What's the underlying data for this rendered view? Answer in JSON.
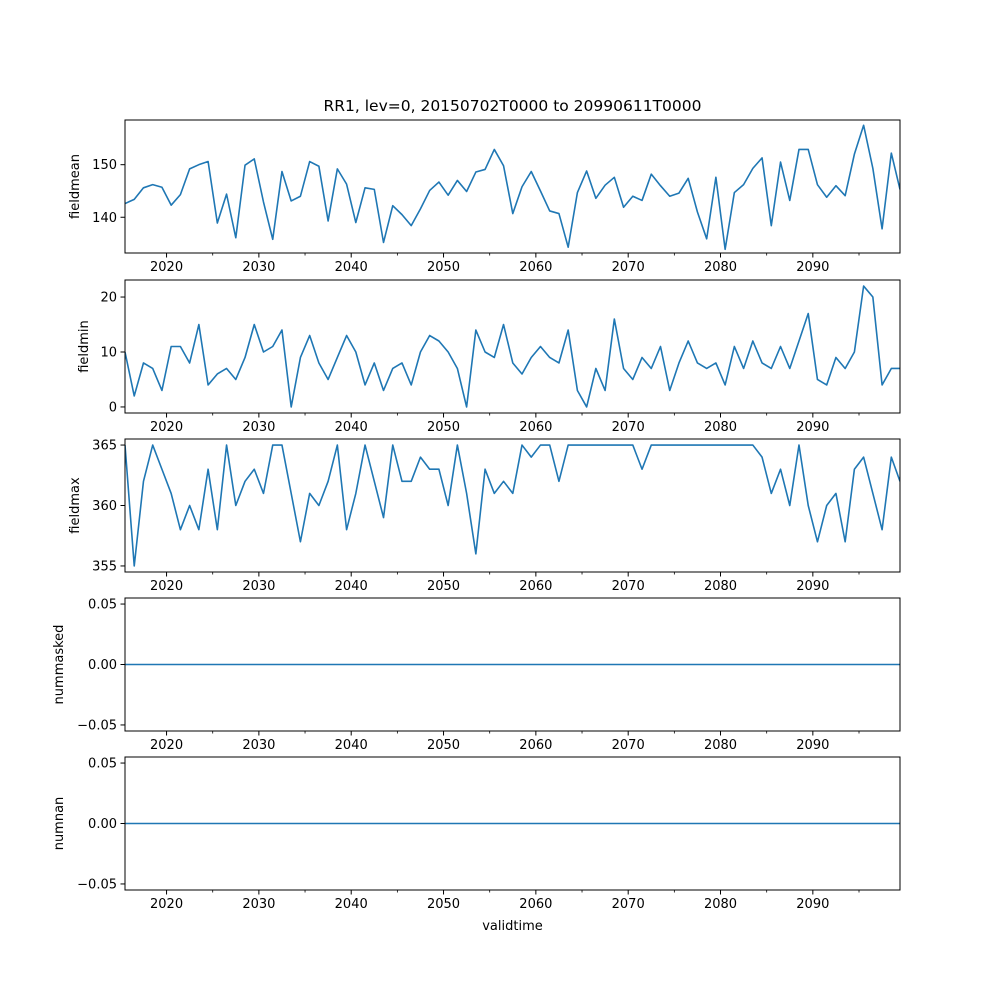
{
  "title": "RR1, lev=0, 20150702T0000 to 20990611T0000",
  "xlabel": "validtime",
  "colors": {
    "line": "#1f77b4",
    "axis": "#000000",
    "background": "#ffffff"
  },
  "chart_data": [
    {
      "type": "line",
      "ylabel": "fieldmean",
      "xlim": [
        2015.5,
        2099.44
      ],
      "ylim": [
        133.2,
        158.5
      ],
      "x_ticks": [
        "2020",
        "2030",
        "2040",
        "2050",
        "2060",
        "2070",
        "2080",
        "2090"
      ],
      "y_ticks": [
        "140",
        "150"
      ],
      "x": [
        2015.5,
        2016.5,
        2017.5,
        2018.5,
        2019.5,
        2020.5,
        2021.5,
        2022.5,
        2023.5,
        2024.5,
        2025.5,
        2026.5,
        2027.5,
        2028.5,
        2029.5,
        2030.5,
        2031.5,
        2032.5,
        2033.5,
        2034.5,
        2035.5,
        2036.5,
        2037.5,
        2038.5,
        2039.5,
        2040.5,
        2041.5,
        2042.5,
        2043.5,
        2044.5,
        2045.5,
        2046.5,
        2047.5,
        2048.5,
        2049.5,
        2050.5,
        2051.5,
        2052.5,
        2053.5,
        2054.5,
        2055.5,
        2056.5,
        2057.5,
        2058.5,
        2059.5,
        2060.5,
        2061.5,
        2062.5,
        2063.5,
        2064.5,
        2065.5,
        2066.5,
        2067.5,
        2068.5,
        2069.5,
        2070.5,
        2071.5,
        2072.5,
        2073.5,
        2074.5,
        2075.5,
        2076.5,
        2077.5,
        2078.5,
        2079.5,
        2080.5,
        2081.5,
        2082.5,
        2083.5,
        2084.5,
        2085.5,
        2086.5,
        2087.5,
        2088.5,
        2089.5,
        2090.5,
        2091.5,
        2092.5,
        2093.5,
        2094.5,
        2095.5,
        2096.5,
        2097.5,
        2098.5,
        2099.44
      ],
      "values": [
        142.6,
        143.4,
        145.6,
        146.2,
        145.7,
        142.3,
        144.3,
        149.2,
        150.0,
        150.6,
        138.9,
        144.4,
        136.1,
        149.9,
        151.1,
        142.9,
        135.8,
        148.7,
        143.1,
        144.0,
        150.6,
        149.7,
        139.3,
        149.2,
        146.3,
        139.0,
        145.6,
        145.3,
        135.2,
        142.2,
        140.5,
        138.4,
        141.6,
        145.1,
        146.7,
        144.2,
        147.0,
        144.9,
        148.6,
        149.1,
        152.9,
        149.8,
        140.7,
        145.8,
        148.7,
        145.0,
        141.2,
        140.7,
        134.3,
        144.7,
        148.8,
        143.6,
        146.1,
        147.6,
        141.9,
        144.0,
        143.2,
        148.2,
        146.0,
        144.0,
        144.6,
        147.4,
        141.0,
        135.9,
        147.6,
        133.9,
        144.7,
        146.2,
        149.3,
        151.3,
        138.4,
        150.5,
        143.2,
        152.9,
        152.9,
        146.2,
        143.8,
        146.0,
        144.1,
        152.0,
        157.5,
        149.3,
        137.8,
        152.2,
        145.3
      ]
    },
    {
      "type": "line",
      "ylabel": "fieldmin",
      "xlim": [
        2015.5,
        2099.44
      ],
      "ylim": [
        -1.1,
        23.1
      ],
      "x_ticks": [
        "2020",
        "2030",
        "2040",
        "2050",
        "2060",
        "2070",
        "2080",
        "2090"
      ],
      "y_ticks": [
        "0",
        "10",
        "20"
      ],
      "x": [
        2015.5,
        2016.5,
        2017.5,
        2018.5,
        2019.5,
        2020.5,
        2021.5,
        2022.5,
        2023.5,
        2024.5,
        2025.5,
        2026.5,
        2027.5,
        2028.5,
        2029.5,
        2030.5,
        2031.5,
        2032.5,
        2033.5,
        2034.5,
        2035.5,
        2036.5,
        2037.5,
        2038.5,
        2039.5,
        2040.5,
        2041.5,
        2042.5,
        2043.5,
        2044.5,
        2045.5,
        2046.5,
        2047.5,
        2048.5,
        2049.5,
        2050.5,
        2051.5,
        2052.5,
        2053.5,
        2054.5,
        2055.5,
        2056.5,
        2057.5,
        2058.5,
        2059.5,
        2060.5,
        2061.5,
        2062.5,
        2063.5,
        2064.5,
        2065.5,
        2066.5,
        2067.5,
        2068.5,
        2069.5,
        2070.5,
        2071.5,
        2072.5,
        2073.5,
        2074.5,
        2075.5,
        2076.5,
        2077.5,
        2078.5,
        2079.5,
        2080.5,
        2081.5,
        2082.5,
        2083.5,
        2084.5,
        2085.5,
        2086.5,
        2087.5,
        2088.5,
        2089.5,
        2090.5,
        2091.5,
        2092.5,
        2093.5,
        2094.5,
        2095.5,
        2096.5,
        2097.5,
        2098.5,
        2099.44
      ],
      "values": [
        10,
        2,
        8,
        7,
        3,
        11,
        11,
        8,
        15,
        4,
        6,
        7,
        5,
        9,
        15,
        10,
        11,
        14,
        0,
        9,
        13,
        8,
        5,
        9,
        13,
        10,
        4,
        8,
        3,
        7,
        8,
        4,
        10,
        13,
        12,
        10,
        7,
        0,
        14,
        10,
        9,
        15,
        8,
        6,
        9,
        11,
        9,
        8,
        14,
        3,
        0,
        7,
        3,
        16,
        7,
        5,
        9,
        7,
        11,
        3,
        8,
        12,
        8,
        7,
        8,
        4,
        11,
        7,
        12,
        8,
        7,
        11,
        7,
        12,
        17,
        5,
        4,
        9,
        7,
        10,
        22,
        20,
        4,
        7,
        7
      ]
    },
    {
      "type": "line",
      "ylabel": "fieldmax",
      "xlim": [
        2015.5,
        2099.44
      ],
      "ylim": [
        354.5,
        365.5
      ],
      "x_ticks": [
        "2020",
        "2030",
        "2040",
        "2050",
        "2060",
        "2070",
        "2080",
        "2090"
      ],
      "y_ticks": [
        "355",
        "360",
        "365"
      ],
      "x": [
        2015.5,
        2016.5,
        2017.5,
        2018.5,
        2019.5,
        2020.5,
        2021.5,
        2022.5,
        2023.5,
        2024.5,
        2025.5,
        2026.5,
        2027.5,
        2028.5,
        2029.5,
        2030.5,
        2031.5,
        2032.5,
        2033.5,
        2034.5,
        2035.5,
        2036.5,
        2037.5,
        2038.5,
        2039.5,
        2040.5,
        2041.5,
        2042.5,
        2043.5,
        2044.5,
        2045.5,
        2046.5,
        2047.5,
        2048.5,
        2049.5,
        2050.5,
        2051.5,
        2052.5,
        2053.5,
        2054.5,
        2055.5,
        2056.5,
        2057.5,
        2058.5,
        2059.5,
        2060.5,
        2061.5,
        2062.5,
        2063.5,
        2064.5,
        2065.5,
        2066.5,
        2067.5,
        2068.5,
        2069.5,
        2070.5,
        2071.5,
        2072.5,
        2073.5,
        2074.5,
        2075.5,
        2076.5,
        2077.5,
        2078.5,
        2079.5,
        2080.5,
        2081.5,
        2082.5,
        2083.5,
        2084.5,
        2085.5,
        2086.5,
        2087.5,
        2088.5,
        2089.5,
        2090.5,
        2091.5,
        2092.5,
        2093.5,
        2094.5,
        2095.5,
        2096.5,
        2097.5,
        2098.5,
        2099.44
      ],
      "values": [
        365,
        355,
        362,
        365,
        363,
        361,
        358,
        360,
        358,
        363,
        358,
        365,
        360,
        362,
        363,
        361,
        365,
        365,
        361,
        357,
        361,
        360,
        362,
        365,
        358,
        361,
        365,
        362,
        359,
        365,
        362,
        362,
        364,
        363,
        363,
        360,
        365,
        361,
        356,
        363,
        361,
        362,
        361,
        365,
        364,
        365,
        365,
        362,
        365,
        365,
        365,
        365,
        365,
        365,
        365,
        365,
        363,
        365,
        365,
        365,
        365,
        365,
        365,
        365,
        365,
        365,
        365,
        365,
        365,
        364,
        361,
        363,
        360,
        365,
        360,
        357,
        360,
        361,
        357,
        363,
        364,
        361,
        358,
        364,
        362
      ]
    },
    {
      "type": "line",
      "ylabel": "nummasked",
      "xlim": [
        2015.5,
        2099.44
      ],
      "ylim": [
        -0.055,
        0.055
      ],
      "x_ticks": [
        "2020",
        "2030",
        "2040",
        "2050",
        "2060",
        "2070",
        "2080",
        "2090"
      ],
      "y_ticks": [
        "−0.05",
        "0.00",
        "0.05"
      ],
      "x": [
        2015.5,
        2099.44
      ],
      "values": [
        0,
        0
      ]
    },
    {
      "type": "line",
      "ylabel": "numnan",
      "xlim": [
        2015.5,
        2099.44
      ],
      "ylim": [
        -0.055,
        0.055
      ],
      "x_ticks": [
        "2020",
        "2030",
        "2040",
        "2050",
        "2060",
        "2070",
        "2080",
        "2090"
      ],
      "y_ticks": [
        "−0.05",
        "0.00",
        "0.05"
      ],
      "x": [
        2015.5,
        2099.44
      ],
      "values": [
        0,
        0
      ]
    }
  ]
}
